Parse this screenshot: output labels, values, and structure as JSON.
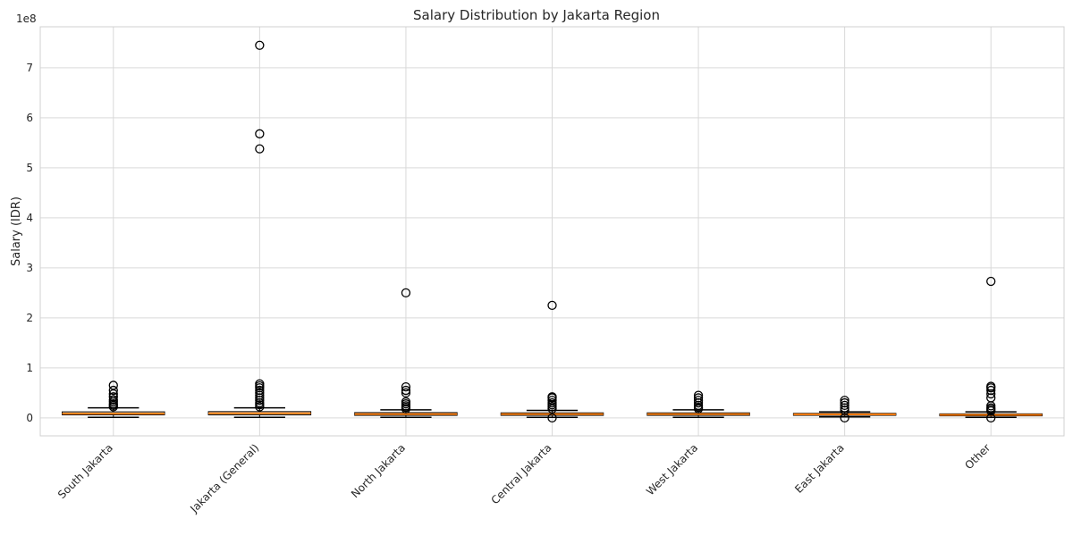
{
  "chart_data": {
    "type": "box",
    "title": "Salary Distribution by Jakarta Region",
    "ylabel": "Salary (IDR)",
    "xlabel": "",
    "y_offset_label": "1e8",
    "ylim": [
      -36000000,
      782000000
    ],
    "yticks": [
      0,
      100000000,
      200000000,
      300000000,
      400000000,
      500000000,
      600000000,
      700000000
    ],
    "ytick_labels": [
      "0",
      "1",
      "2",
      "3",
      "4",
      "5",
      "6",
      "7"
    ],
    "grid": true,
    "colors": {
      "median": "#ff7f0e",
      "box": "#000000",
      "grid": "#d9d9d9"
    },
    "categories": [
      "South Jakarta",
      "Jakarta (General)",
      "North Jakarta",
      "Central Jakarta",
      "West Jakarta",
      "East Jakarta",
      "Other"
    ],
    "boxes": [
      {
        "whislo": 1000000,
        "q1": 6000000,
        "med": 8500000,
        "q3": 12000000,
        "whishi": 20000000,
        "fliers": [
          22000000,
          25000000,
          28000000,
          32000000,
          36000000,
          42000000,
          48000000,
          55000000,
          65000000
        ]
      },
      {
        "whislo": 1000000,
        "q1": 6000000,
        "med": 9000000,
        "q3": 12500000,
        "whishi": 20000000,
        "fliers": [
          22000000,
          26000000,
          30000000,
          35000000,
          40000000,
          45000000,
          50000000,
          55000000,
          60000000,
          64000000,
          68000000,
          538000000,
          568000000,
          745000000
        ]
      },
      {
        "whislo": 1000000,
        "q1": 5000000,
        "med": 7500000,
        "q3": 10500000,
        "whishi": 16000000,
        "fliers": [
          18000000,
          21000000,
          24000000,
          28000000,
          32000000,
          50000000,
          55000000,
          62000000,
          250000000
        ]
      },
      {
        "whislo": 1000000,
        "q1": 5000000,
        "med": 7500000,
        "q3": 10000000,
        "whishi": 15000000,
        "fliers": [
          0,
          18000000,
          22000000,
          26000000,
          30000000,
          35000000,
          40000000,
          42000000,
          225000000
        ]
      },
      {
        "whislo": 1000000,
        "q1": 5000000,
        "med": 7500000,
        "q3": 10000000,
        "whishi": 16000000,
        "fliers": [
          18000000,
          21000000,
          25000000,
          30000000,
          35000000,
          40000000,
          45000000
        ]
      },
      {
        "whislo": 2000000,
        "q1": 5000000,
        "med": 7000000,
        "q3": 9000000,
        "whishi": 12000000,
        "fliers": [
          0,
          15000000,
          20000000,
          25000000,
          30000000,
          35000000
        ]
      },
      {
        "whislo": 1000000,
        "q1": 4000000,
        "med": 6000000,
        "q3": 8000000,
        "whishi": 12000000,
        "fliers": [
          0,
          14000000,
          17000000,
          20000000,
          24000000,
          40000000,
          48000000,
          55000000,
          60000000,
          63000000,
          273000000
        ]
      }
    ]
  }
}
